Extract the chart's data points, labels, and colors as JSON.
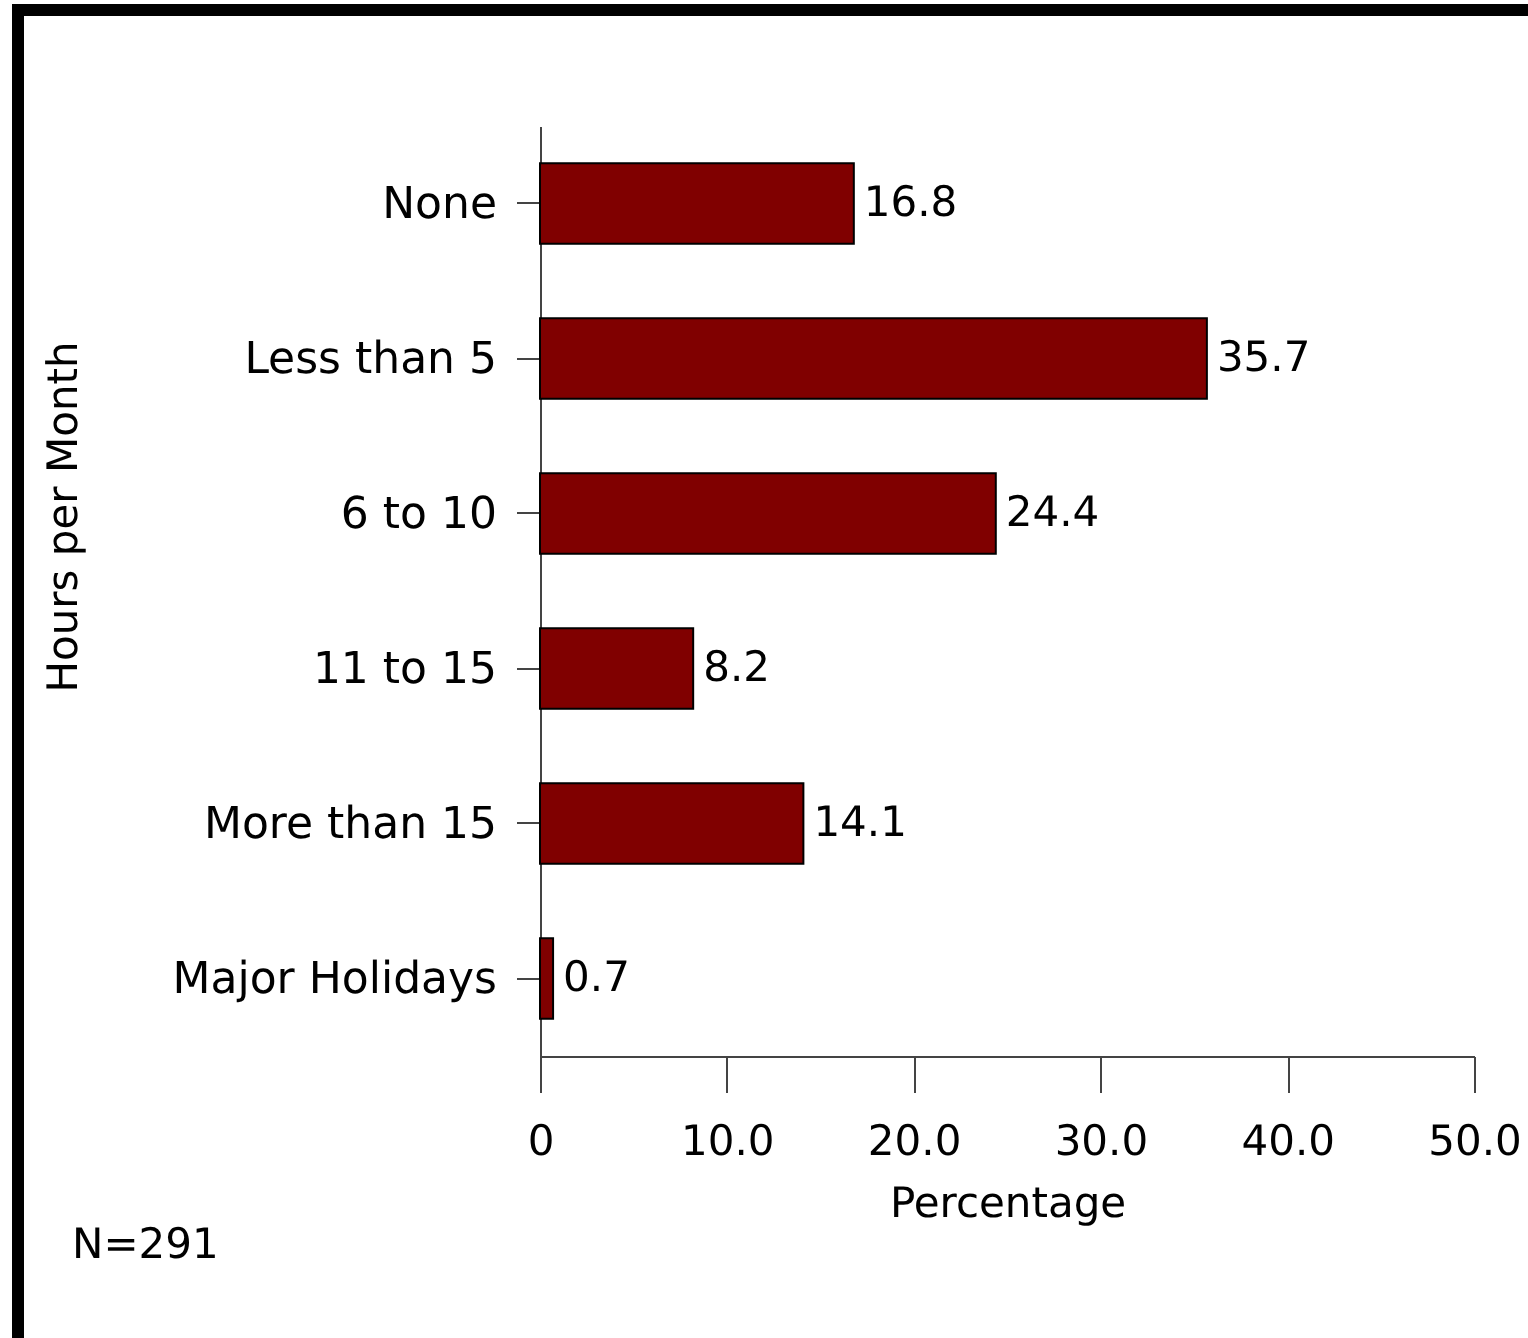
{
  "chart_data": {
    "type": "bar",
    "orientation": "horizontal",
    "xlabel": "Percentage",
    "ylabel": "Hours per Month",
    "categories": [
      "None",
      "Less than 5",
      "6 to 10",
      "11 to 15",
      "More than 15",
      "Major Holidays"
    ],
    "values": [
      16.8,
      35.7,
      24.4,
      8.2,
      14.1,
      0.7
    ],
    "color": "#800000",
    "xlim": [
      0,
      50
    ],
    "xticks": [
      0,
      {
        "value": 10,
        "label": "10.0"
      },
      {
        "value": 20,
        "label": "20.0"
      },
      {
        "value": 30,
        "label": "30.0"
      },
      {
        "value": 40,
        "label": "40.0"
      },
      {
        "value": 50,
        "label": "50.0"
      }
    ],
    "data_labels": true,
    "grid": false,
    "annotations": [
      "N=291"
    ]
  }
}
